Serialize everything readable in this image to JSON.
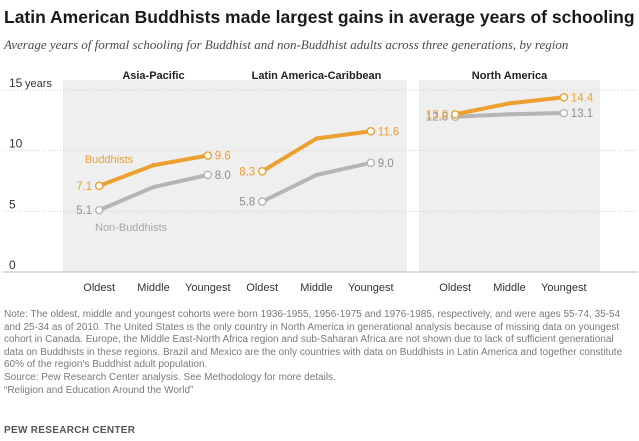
{
  "header": {
    "title": "Latin American Buddhists made largest gains in average years of schooling",
    "subtitle": "Average years of formal schooling for Buddhist and non-Buddhist adults across three generations, by region"
  },
  "colors": {
    "buddhists": "#ECA031",
    "non_buddhists": "#B5B5B5",
    "panel_bg": "#EFEFEF",
    "axis_text": "#333333"
  },
  "chart_data": {
    "type": "line",
    "ylim": [
      0,
      15
    ],
    "y_ticks": [
      "15",
      "10",
      "5",
      "0"
    ],
    "y_unit_label": "years",
    "categories": [
      "Oldest",
      "Middle",
      "Youngest"
    ],
    "panels": [
      {
        "title": "Asia-Pacific",
        "series": [
          {
            "name": "Buddhists",
            "values": [
              7.1,
              8.8,
              9.6
            ],
            "labels": [
              "7.1",
              "",
              "9.6"
            ]
          },
          {
            "name": "Non-Buddhists",
            "values": [
              5.1,
              7.0,
              8.0
            ],
            "labels": [
              "5.1",
              "",
              "8.0"
            ]
          }
        ]
      },
      {
        "title": "Latin America-Caribbean",
        "series": [
          {
            "name": "Buddhists",
            "values": [
              8.3,
              11.0,
              11.6
            ],
            "labels": [
              "8.3",
              "",
              "11.6"
            ]
          },
          {
            "name": "Non-Buddhists",
            "values": [
              5.8,
              8.0,
              9.0
            ],
            "labels": [
              "5.8",
              "",
              "9.0"
            ]
          }
        ]
      },
      {
        "title": "North America",
        "series": [
          {
            "name": "Buddhists",
            "values": [
              13.0,
              13.9,
              14.4
            ],
            "labels": [
              "13.0",
              "",
              "14.4"
            ]
          },
          {
            "name": "Non-Buddhists",
            "values": [
              12.8,
              13.0,
              13.1
            ],
            "labels": [
              "12.8",
              "",
              "13.1"
            ]
          }
        ]
      }
    ],
    "series_labels": {
      "buddhists": "Buddhists",
      "non_buddhists": "Non-Buddhists"
    }
  },
  "footer": {
    "note": "Note: The oldest, middle and youngest cohorts were born 1936-1955, 1956-1975 and 1976-1985,  respectively, and were ages 55-74, 35-54 and 25-34 as of 2010. The United States is the only country in North America in generational analysis because of missing data on youngest cohort in Canada. Europe, the Middle East-North Africa region and sub-Saharan Africa are not shown due to lack of sufficient generational data on Buddhists in these regions. Brazil and Mexico are the only countries with data on Buddhists in Latin America and together constitute 60% of the region’s Buddhist adult population.",
    "source": "Source: Pew Research Center analysis. See Methodology for more details.",
    "report": "“Religion and Education Around the World”",
    "brand": "PEW RESEARCH CENTER"
  }
}
